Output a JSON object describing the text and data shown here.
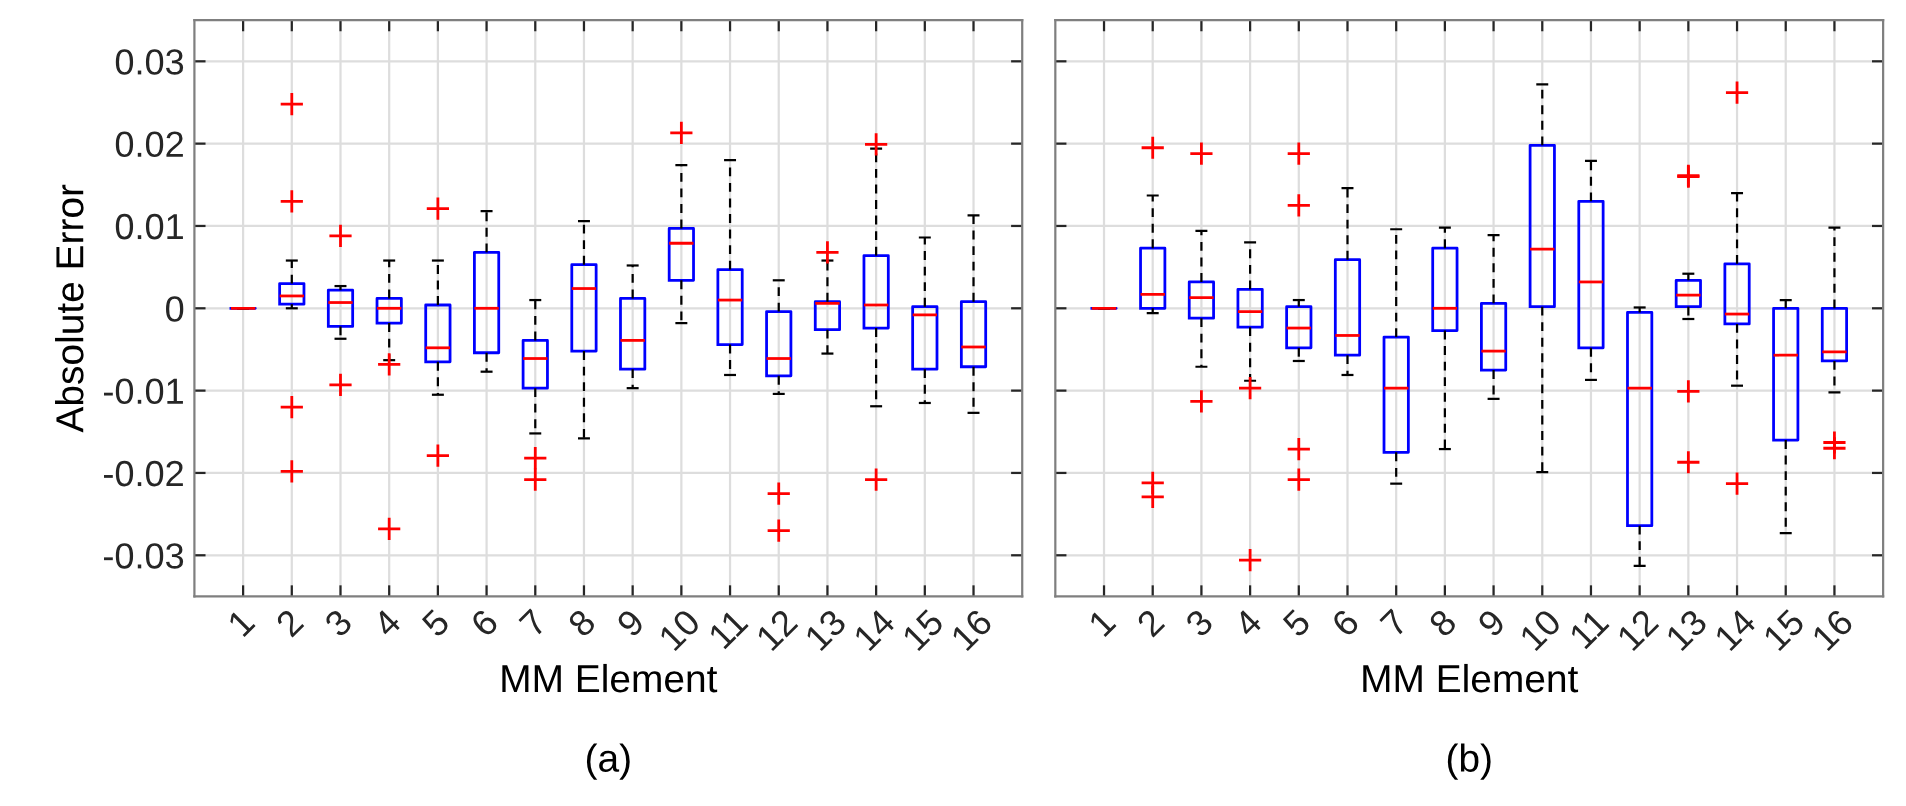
{
  "chart_data": [
    {
      "type": "box",
      "xlabel": "MM Element",
      "ylabel": "Absolute Error",
      "annotations": [
        "(a)"
      ],
      "grid": true,
      "ylim": [
        -0.035,
        0.035
      ],
      "yticks": [
        -0.03,
        -0.02,
        -0.01,
        0,
        0.01,
        0.02,
        0.03
      ],
      "categories": [
        "1",
        "2",
        "3",
        "4",
        "5",
        "6",
        "7",
        "8",
        "9",
        "10",
        "11",
        "12",
        "13",
        "14",
        "15",
        "16"
      ],
      "series": [
        {
          "color": "#0000ff",
          "boxes": [
            {
              "low": 0,
              "q1": 0,
              "median": 0,
              "q3": 0,
              "high": 0
            },
            {
              "low": 0,
              "q1": 0.0005,
              "median": 0.0015,
              "q3": 0.003,
              "high": 0.0058,
              "outliers": [
                0.0248,
                0.013,
                -0.012,
                -0.0198
              ]
            },
            {
              "low": -0.0037,
              "q1": -0.0022,
              "median": 0.0007,
              "q3": 0.0022,
              "high": 0.0027,
              "outliers": [
                0.0088,
                -0.0093
              ]
            },
            {
              "low": -0.0063,
              "q1": -0.0018,
              "median": 0,
              "q3": 0.0012,
              "high": 0.0058,
              "outliers": [
                -0.0068,
                -0.0268
              ]
            },
            {
              "low": -0.0105,
              "q1": -0.0065,
              "median": -0.0048,
              "q3": 0.0004,
              "high": 0.0058,
              "outliers": [
                0.0121,
                -0.0179
              ]
            },
            {
              "low": -0.0077,
              "q1": -0.0054,
              "median": 0,
              "q3": 0.0068,
              "high": 0.0118
            },
            {
              "low": -0.0152,
              "q1": -0.0097,
              "median": -0.0061,
              "q3": -0.0039,
              "high": 0.001,
              "outliers": [
                -0.0182,
                -0.0208
              ]
            },
            {
              "low": -0.0158,
              "q1": -0.0052,
              "median": 0.0024,
              "q3": 0.0053,
              "high": 0.0106
            },
            {
              "low": -0.0097,
              "q1": -0.0074,
              "median": -0.0039,
              "q3": 0.0012,
              "high": 0.0052
            },
            {
              "low": -0.0018,
              "q1": 0.0034,
              "median": 0.0079,
              "q3": 0.0097,
              "high": 0.0174,
              "outliers": [
                0.0213
              ]
            },
            {
              "low": -0.0081,
              "q1": -0.0044,
              "median": 0.001,
              "q3": 0.0047,
              "high": 0.018
            },
            {
              "low": -0.0104,
              "q1": -0.0082,
              "median": -0.0061,
              "q3": -0.0004,
              "high": 0.0034,
              "outliers": [
                -0.0225,
                -0.027
              ]
            },
            {
              "low": -0.0055,
              "q1": -0.0026,
              "median": 0.0006,
              "q3": 0.0008,
              "high": 0.0058,
              "outliers": [
                0.0068
              ]
            },
            {
              "low": -0.0119,
              "q1": -0.0024,
              "median": 0.0004,
              "q3": 0.0064,
              "high": 0.0194,
              "outliers": [
                0.0199,
                -0.0208
              ]
            },
            {
              "low": -0.0115,
              "q1": -0.0074,
              "median": -0.0008,
              "q3": 0.0002,
              "high": 0.0086
            },
            {
              "low": -0.0127,
              "q1": -0.0071,
              "median": -0.0047,
              "q3": 0.0008,
              "high": 0.0113
            }
          ]
        }
      ]
    },
    {
      "type": "box",
      "xlabel": "MM Element",
      "annotations": [
        "(b)"
      ],
      "grid": true,
      "tick_labels": "x",
      "ylim": [
        -0.035,
        0.035
      ],
      "yticks": [
        -0.03,
        -0.02,
        -0.01,
        0,
        0.01,
        0.02,
        0.03
      ],
      "categories": [
        "1",
        "2",
        "3",
        "4",
        "5",
        "6",
        "7",
        "8",
        "9",
        "10",
        "11",
        "12",
        "13",
        "14",
        "15",
        "16"
      ],
      "series": [
        {
          "color": "#0000ff",
          "boxes": [
            {
              "low": 0,
              "q1": 0,
              "median": 0,
              "q3": 0,
              "high": 0
            },
            {
              "low": -0.0006,
              "q1": 0,
              "median": 0.0017,
              "q3": 0.0073,
              "high": 0.0137,
              "outliers": [
                0.0195,
                -0.0212,
                -0.0229
              ]
            },
            {
              "low": -0.0071,
              "q1": -0.0012,
              "median": 0.0013,
              "q3": 0.0032,
              "high": 0.0094,
              "outliers": [
                0.0188,
                -0.0113
              ]
            },
            {
              "low": -0.0088,
              "q1": -0.0023,
              "median": -0.0004,
              "q3": 0.0023,
              "high": 0.008,
              "outliers": [
                -0.0097,
                -0.0306
              ]
            },
            {
              "low": -0.0064,
              "q1": -0.0048,
              "median": -0.0024,
              "q3": 0.0002,
              "high": 0.001,
              "outliers": [
                0.0188,
                0.0125,
                -0.0171,
                -0.0208
              ]
            },
            {
              "low": -0.0081,
              "q1": -0.0057,
              "median": -0.0033,
              "q3": 0.0059,
              "high": 0.0146
            },
            {
              "low": -0.0213,
              "q1": -0.0175,
              "median": -0.0097,
              "q3": -0.0035,
              "high": 0.0096
            },
            {
              "low": -0.0171,
              "q1": -0.0027,
              "median": 0,
              "q3": 0.0073,
              "high": 0.0098
            },
            {
              "low": -0.011,
              "q1": -0.0075,
              "median": -0.0052,
              "q3": 0.0006,
              "high": 0.0089
            },
            {
              "low": -0.0199,
              "q1": 0.0002,
              "median": 0.0072,
              "q3": 0.0198,
              "high": 0.0272
            },
            {
              "low": -0.0087,
              "q1": -0.0048,
              "median": 0.0032,
              "q3": 0.013,
              "high": 0.0179
            },
            {
              "low": -0.0313,
              "q1": -0.0264,
              "median": -0.0097,
              "q3": -0.0005,
              "high": 0.0001
            },
            {
              "low": -0.0013,
              "q1": 0.0002,
              "median": 0.0016,
              "q3": 0.0034,
              "high": 0.0042,
              "outliers": [
                0.0161,
                0.016,
                -0.0101,
                -0.0187
              ]
            },
            {
              "low": -0.0094,
              "q1": -0.0019,
              "median": -0.0007,
              "q3": 0.0054,
              "high": 0.014,
              "outliers": [
                0.0262,
                -0.0213
              ]
            },
            {
              "low": -0.0273,
              "q1": -0.016,
              "median": -0.0057,
              "q3": 0,
              "high": 0.001
            },
            {
              "low": -0.0102,
              "q1": -0.0064,
              "median": -0.0053,
              "q3": 0,
              "high": 0.0098,
              "outliers": [
                -0.0163,
                -0.017
              ]
            }
          ]
        }
      ]
    }
  ]
}
